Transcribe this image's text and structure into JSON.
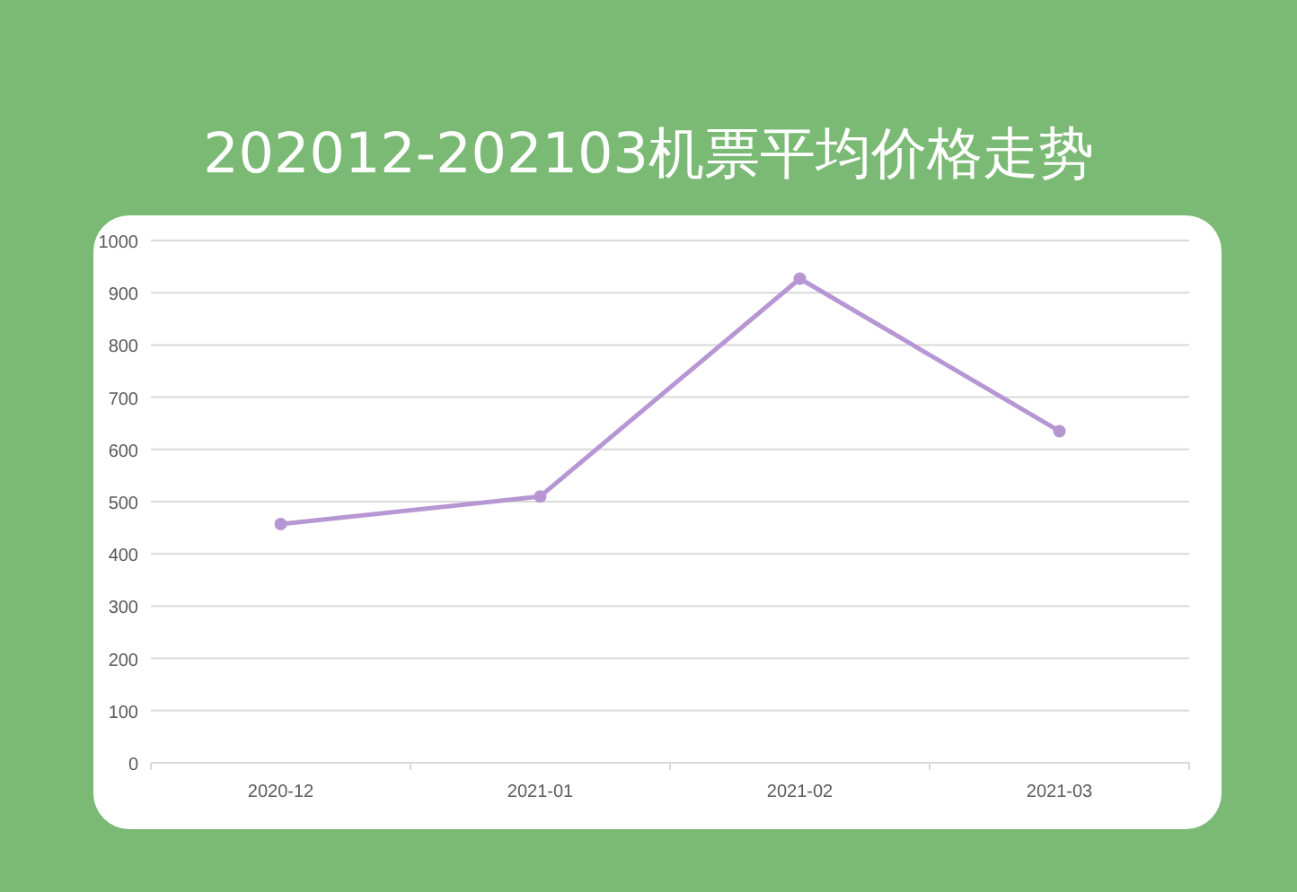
{
  "chart_data": {
    "type": "line",
    "title": "202012-202103机票平均价格走势",
    "categories": [
      "2020-12",
      "2021-01",
      "2021-02",
      "2021-03"
    ],
    "series": [
      {
        "color": "#b796d4",
        "values": [
          457,
          510,
          927,
          635
        ]
      }
    ],
    "ylim": [
      0,
      1000
    ],
    "yticks": [
      0,
      100,
      200,
      300,
      400,
      500,
      600,
      700,
      800,
      900,
      1000
    ],
    "grid": "y",
    "marker": "circle",
    "line_style": "solid"
  }
}
